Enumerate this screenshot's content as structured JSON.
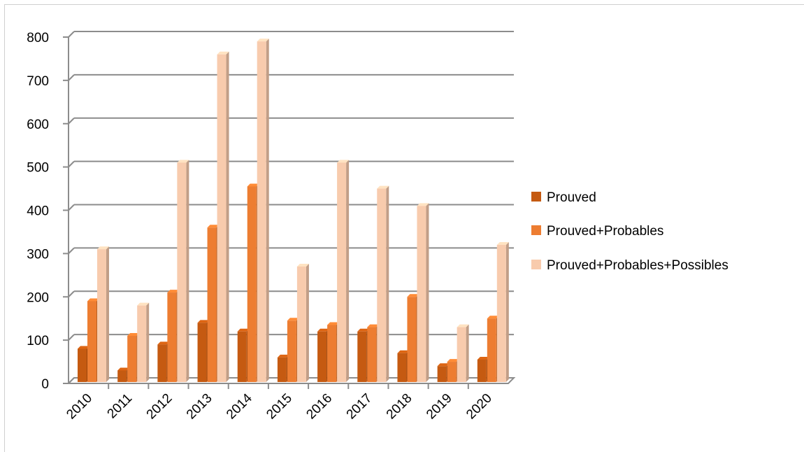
{
  "chart_data": {
    "type": "bar",
    "title": "",
    "xlabel": "",
    "ylabel": "",
    "categories": [
      "2010",
      "2011",
      "2012",
      "2013",
      "2014",
      "2015",
      "2016",
      "2017",
      "2018",
      "2019",
      "2020"
    ],
    "series": [
      {
        "name": "Prouved",
        "color": "#C55A11",
        "values": [
          80,
          30,
          90,
          140,
          120,
          60,
          120,
          120,
          70,
          40,
          55
        ]
      },
      {
        "name": "Prouved+Probables",
        "color": "#ED7D31",
        "values": [
          190,
          110,
          210,
          360,
          455,
          145,
          135,
          130,
          200,
          50,
          150
        ]
      },
      {
        "name": "Prouved+Probables+Possibles",
        "color": "#F8CBAD",
        "values": [
          310,
          180,
          510,
          760,
          790,
          270,
          510,
          450,
          410,
          130,
          320
        ]
      }
    ],
    "ylim": [
      0,
      800
    ],
    "yticks": [
      0,
      100,
      200,
      300,
      400,
      500,
      600,
      700,
      800
    ],
    "grid": true,
    "legend_position": "right"
  }
}
